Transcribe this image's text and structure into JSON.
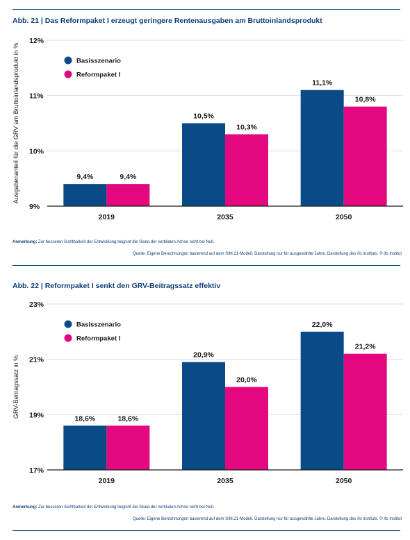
{
  "colors": {
    "basis": "#0a4a86",
    "reform": "#e4087e",
    "grid": "#d9dde4",
    "axis": "#1a1a1a",
    "accent": "#0d3f78"
  },
  "chart_data": [
    {
      "type": "bar",
      "title": "Abb. 21 | Das Reformpaket I erzeugt geringere Rentenausgaben am Bruttoinlandsprodukt",
      "ylabel": "Ausgabenanteil für die GRV am Bruttoinlandsprodukt in %",
      "categories": [
        "2019",
        "2035",
        "2050"
      ],
      "ylim": [
        9,
        12
      ],
      "yticks": [
        9,
        10,
        11,
        12
      ],
      "ytick_labels": [
        "9%",
        "10%",
        "11%",
        "12%"
      ],
      "grid": true,
      "legend_position": "top-left",
      "series": [
        {
          "name": "Basisszenario",
          "values": [
            9.4,
            10.5,
            11.1
          ],
          "labels": [
            "9,4%",
            "10,5%",
            "11,1%"
          ]
        },
        {
          "name": "Reformpaket I",
          "values": [
            9.4,
            10.3,
            10.8
          ],
          "labels": [
            "9,4%",
            "10,3%",
            "10,8%"
          ]
        }
      ],
      "note_prefix": "Anmerkung:",
      "note": " Zur besseren Sichtbarkeit der Entwicklung beginnt die Skala der vertikalen Achse nicht bei Null.",
      "source": "Quelle: Eigene Berechnungen basierend auf dem SIM.21-Modell. Darstellung nur für ausgewählte Jahre. Darstellung des ifo Instituts. © ifo Institut"
    },
    {
      "type": "bar",
      "title": "Abb. 22 | Reformpaket I senkt den GRV-Beitragssatz effektiv",
      "ylabel": "GRV-Beitragssatz in %",
      "categories": [
        "2019",
        "2035",
        "2050"
      ],
      "ylim": [
        17,
        23
      ],
      "yticks": [
        17,
        19,
        21,
        23
      ],
      "ytick_labels": [
        "17%",
        "19%",
        "21%",
        "23%"
      ],
      "grid": true,
      "legend_position": "top-left",
      "series": [
        {
          "name": "Basisszenario",
          "values": [
            18.6,
            20.9,
            22.0
          ],
          "labels": [
            "18,6%",
            "20,9%",
            "22,0%"
          ]
        },
        {
          "name": "Reformpaket I",
          "values": [
            18.6,
            20.0,
            21.2
          ],
          "labels": [
            "18,6%",
            "20,0%",
            "21,2%"
          ]
        }
      ],
      "note_prefix": "Anmerkung:",
      "note": " Zur besseren Sichtbarkeit der Entwicklung beginnt die Skala der vertikalen Achse nicht bei Null.",
      "source": "Quelle: Eigene Berechnungen basierend auf dem SIM.21-Modell. Darstellung nur für ausgewählte Jahre. Darstellung des ifo Instituts. © ifo Institut"
    }
  ]
}
